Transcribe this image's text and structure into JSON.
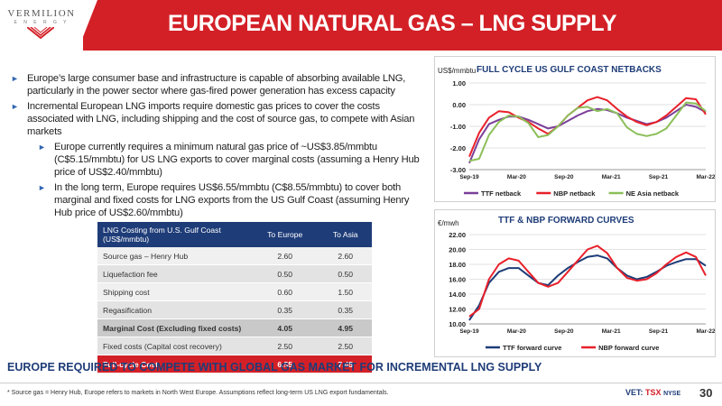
{
  "header": {
    "logo_text": "VERMILION",
    "logo_sub": "E N E R G Y",
    "title": "EUROPEAN NATURAL GAS – LNG SUPPLY"
  },
  "bullets": [
    {
      "level": 1,
      "text": "Europe’s large consumer base and infrastructure is capable of absorbing available LNG, particularly in the power sector where gas-fired power generation has excess capacity"
    },
    {
      "level": 1,
      "text": "Incremental European LNG imports require domestic gas prices to cover the costs associated with LNG, including shipping and the cost of source gas, to compete with Asian markets"
    },
    {
      "level": 2,
      "text": "Europe currently requires a minimum natural gas price of ~US$3.85/mmbtu (C$5.15/mmbtu) for US LNG exports to cover marginal costs (assuming a Henry Hub price of US$2.40/mmbtu)"
    },
    {
      "level": 2,
      "text": "In the long term, Europe requires US$6.55/mmbtu (C$8.55/mmbtu) to cover both marginal and fixed costs for LNG exports from the US Gulf Coast (assuming Henry Hub price of US$2.60/mmbtu)"
    }
  ],
  "table": {
    "headers": [
      "LNG Costing from U.S. Gulf Coast (US$/mmbtu)",
      "To Europe",
      "To Asia"
    ],
    "rows": [
      {
        "label": "Source gas – Henry Hub",
        "europe": "2.60",
        "asia": "2.60"
      },
      {
        "label": "Liquefaction fee",
        "europe": "0.50",
        "asia": "0.50"
      },
      {
        "label": "Shipping cost",
        "europe": "0.60",
        "asia": "1.50"
      },
      {
        "label": "Regasification",
        "europe": "0.35",
        "asia": "0.35"
      },
      {
        "label": "Marginal Cost (Excluding fixed costs)",
        "europe": "4.05",
        "asia": "4.95"
      },
      {
        "label": "Fixed costs (Capital cost recovery)",
        "europe": "2.50",
        "asia": "2.50"
      },
      {
        "label": "Full-cycle Cost",
        "europe": "6.55",
        "asia": "7.45"
      }
    ]
  },
  "chart_data": [
    {
      "type": "line",
      "title": "FULL CYCLE US GULF COAST NETBACKS",
      "ylabel": "US$/mmbtu",
      "ylim": [
        -3.0,
        1.0
      ],
      "yticks": [
        "1.00",
        "0.00",
        "-1.00",
        "-2.00",
        "-3.00"
      ],
      "xticks": [
        "Sep-19",
        "Mar-20",
        "Sep-20",
        "Mar-21",
        "Sep-21",
        "Mar-22"
      ],
      "legend": "bottom",
      "series": [
        {
          "name": "TTF netback",
          "color": "#7b3f99",
          "values": [
            -2.7,
            -1.6,
            -0.9,
            -0.7,
            -0.55,
            -0.55,
            -0.7,
            -0.9,
            -1.1,
            -1.0,
            -0.75,
            -0.5,
            -0.3,
            -0.2,
            -0.25,
            -0.4,
            -0.6,
            -0.75,
            -0.9,
            -0.8,
            -0.6,
            -0.3,
            0.0,
            -0.1,
            -0.35
          ]
        },
        {
          "name": "NBP netback",
          "color": "#e8202a",
          "values": [
            -2.4,
            -1.3,
            -0.6,
            -0.3,
            -0.35,
            -0.6,
            -0.8,
            -1.1,
            -1.35,
            -1.0,
            -0.5,
            -0.15,
            0.2,
            0.35,
            0.2,
            -0.2,
            -0.55,
            -0.8,
            -0.95,
            -0.8,
            -0.5,
            -0.1,
            0.3,
            0.25,
            -0.45
          ]
        },
        {
          "name": "NE Asia netback",
          "color": "#8cbf5a",
          "values": [
            -2.6,
            -2.5,
            -1.4,
            -0.8,
            -0.5,
            -0.55,
            -0.85,
            -1.5,
            -1.4,
            -1.0,
            -0.5,
            -0.15,
            -0.1,
            -0.3,
            -0.2,
            -0.4,
            -1.05,
            -1.35,
            -1.45,
            -1.35,
            -1.1,
            -0.5,
            0.1,
            0.05,
            -0.3
          ]
        }
      ]
    },
    {
      "type": "line",
      "title": "TTF & NBP FORWARD CURVES",
      "ylabel": "€/mwh",
      "ylim": [
        10.0,
        22.0
      ],
      "yticks": [
        "22.00",
        "20.00",
        "18.00",
        "16.00",
        "14.00",
        "12.00",
        "10.00"
      ],
      "xticks": [
        "Sep-19",
        "Mar-20",
        "Sep-20",
        "Mar-21",
        "Sep-21",
        "Mar-22"
      ],
      "legend": "bottom",
      "series": [
        {
          "name": "TTF forward curve",
          "color": "#1e3c78",
          "values": [
            10.5,
            12.5,
            15.5,
            17.0,
            17.5,
            17.5,
            16.5,
            15.5,
            15.2,
            16.5,
            17.5,
            18.3,
            19.0,
            19.2,
            18.8,
            17.5,
            16.5,
            16.0,
            16.3,
            17.0,
            17.8,
            18.3,
            18.7,
            18.7,
            17.8
          ]
        },
        {
          "name": "NBP forward curve",
          "color": "#e8202a",
          "values": [
            11.0,
            12.0,
            16.0,
            18.0,
            18.8,
            18.5,
            17.0,
            15.5,
            15.0,
            15.5,
            17.0,
            18.5,
            20.0,
            20.5,
            19.5,
            17.5,
            16.2,
            15.8,
            16.0,
            16.8,
            18.0,
            19.0,
            19.6,
            19.0,
            16.5
          ]
        }
      ]
    }
  ],
  "banner": "EUROPE REQUIRED TO COMPETE WITH GLOBAL GAS MARKET FOR INCREMENTAL LNG SUPPLY",
  "footnote": "* Source gas = Henry Hub, Europe refers to markets in North West Europe. Assumptions reflect long-term US LNG export fundamentals.",
  "exchange": {
    "vet": "VET:",
    "tsx": "TSX",
    "nyse": "NYSE"
  },
  "page_number": "30"
}
